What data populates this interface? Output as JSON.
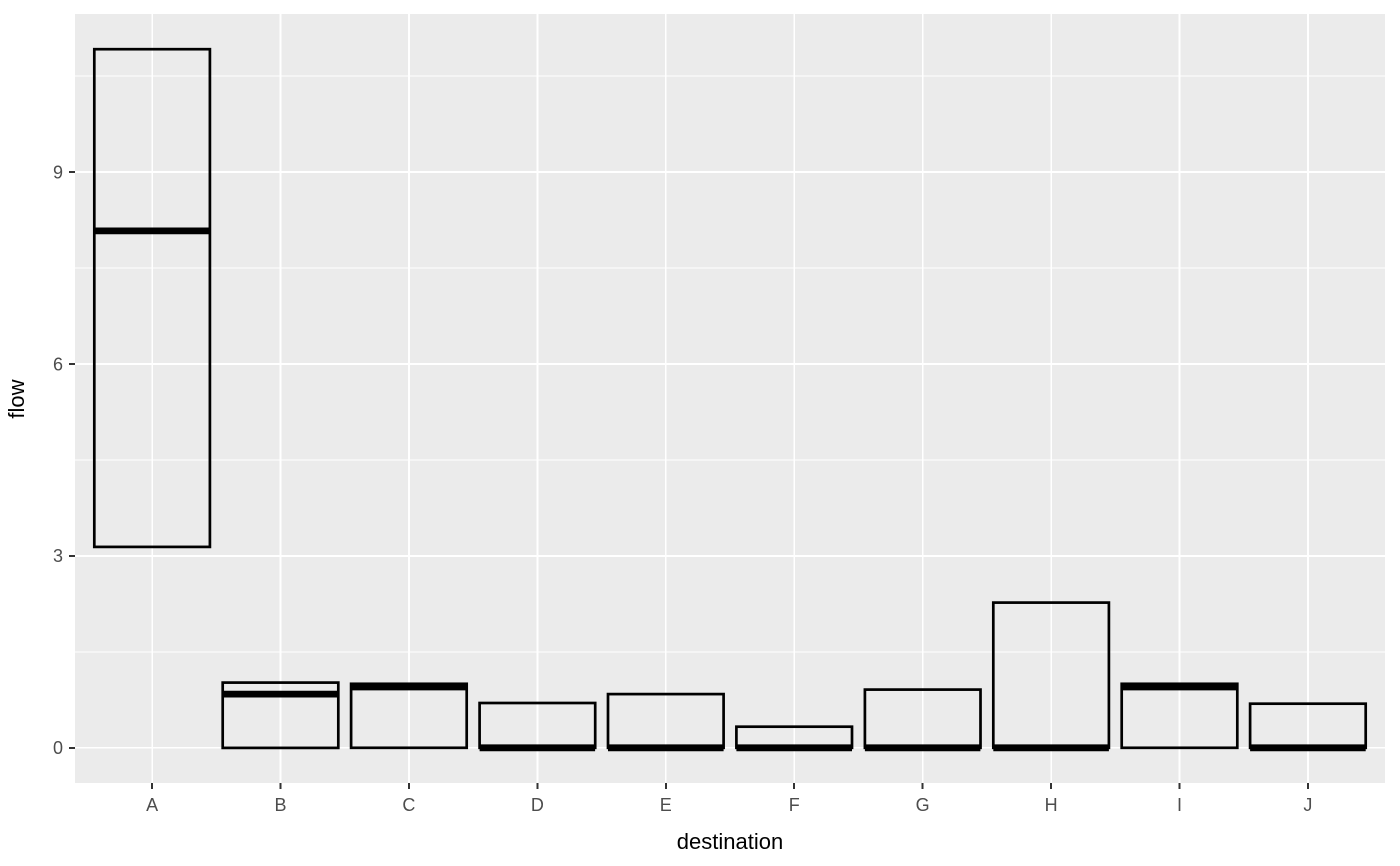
{
  "chart_data": {
    "type": "crossbar",
    "title": "",
    "xlabel": "destination",
    "ylabel": "flow",
    "categories": [
      "A",
      "B",
      "C",
      "D",
      "E",
      "F",
      "G",
      "H",
      "I",
      "J"
    ],
    "series": [
      {
        "name": "flow",
        "values": [
          {
            "category": "A",
            "ymin": 3.14,
            "middle": 8.08,
            "ymax": 10.92
          },
          {
            "category": "B",
            "ymin": 0,
            "middle": 0.84,
            "ymax": 1.02
          },
          {
            "category": "C",
            "ymin": 0,
            "middle": 0.95,
            "ymax": 1.0
          },
          {
            "category": "D",
            "ymin": 0,
            "middle": 0,
            "ymax": 0.7
          },
          {
            "category": "E",
            "ymin": 0,
            "middle": 0,
            "ymax": 0.84
          },
          {
            "category": "F",
            "ymin": 0,
            "middle": 0,
            "ymax": 0.33
          },
          {
            "category": "G",
            "ymin": 0,
            "middle": 0,
            "ymax": 0.91
          },
          {
            "category": "H",
            "ymin": 0,
            "middle": 0,
            "ymax": 2.27
          },
          {
            "category": "I",
            "ymin": 0,
            "middle": 0.95,
            "ymax": 1.0
          },
          {
            "category": "J",
            "ymin": 0,
            "middle": 0,
            "ymax": 0.69
          }
        ]
      }
    ],
    "y_major_ticks": [
      0,
      3,
      6,
      9
    ],
    "y_tick_labels": [
      "0",
      "3",
      "6",
      "9"
    ],
    "y_minor_gridlines": [
      1.5,
      4.5,
      7.5,
      10.5
    ],
    "ylim": [
      -0.55,
      11.47
    ],
    "xlim_units": [
      0.4,
      10.6
    ],
    "box_width_ratio": 0.9,
    "grid": "white major+minor horizontal lines, white major vertical line at each category center",
    "legend": "none",
    "panel_theme": "ggplot2 grey"
  },
  "colors": {
    "figure_background": "#FFFFFF",
    "panel_background": "#EBEBEB",
    "gridline": "#FFFFFF",
    "crossbar_stroke": "#000000",
    "crossbar_fill": "none",
    "tick_mark": "#333333",
    "tick_label": "#4D4D4D",
    "axis_title": "#000000"
  }
}
